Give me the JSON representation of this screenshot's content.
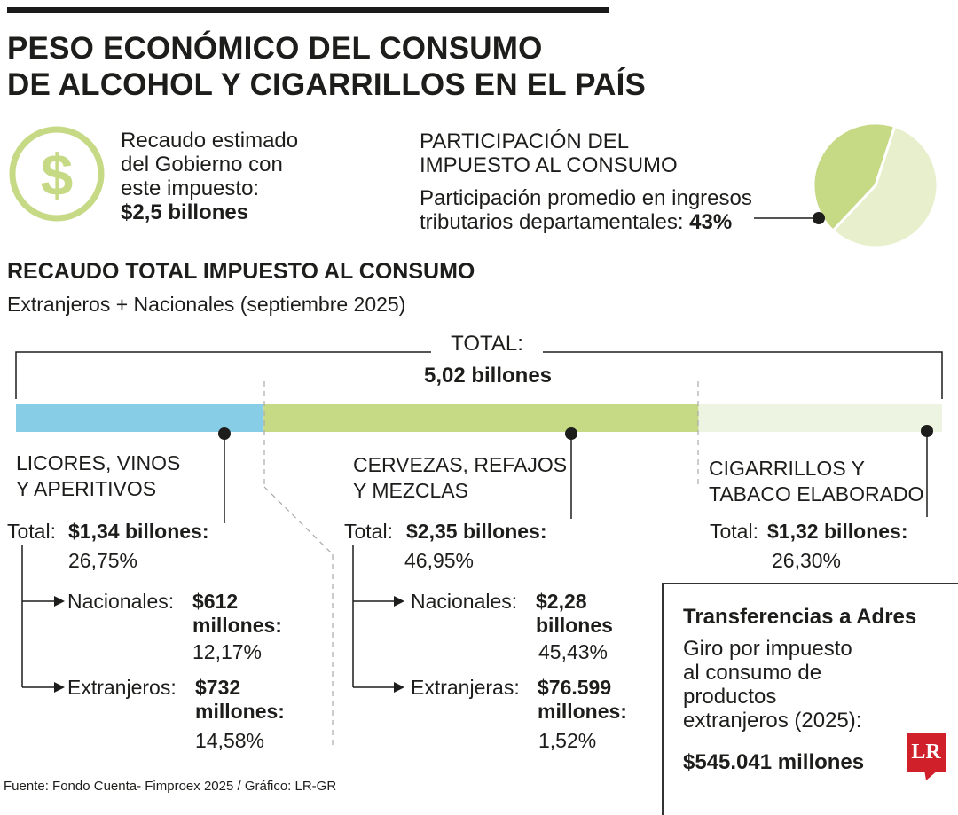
{
  "title": {
    "line1": "PESO ECONÓMICO DEL CONSUMO",
    "line2": "DE ALCOHOL Y CIGARRILLOS EN EL PAÍS"
  },
  "recaudo": {
    "line1": "Recaudo estimado",
    "line2": "del Gobierno con",
    "line3": "este impuesto:",
    "value": "$2,5 billones",
    "icon": "dollar-icon"
  },
  "participacion": {
    "title_line1": "PARTICIPACIÓN DEL",
    "title_line2": "IMPUESTO AL CONSUMO",
    "desc_line1": "Participación promedio en ingresos",
    "desc_line2": "tributarios departamentales:",
    "value": "43%"
  },
  "section": {
    "title": "RECAUDO TOTAL IMPUESTO AL CONSUMO",
    "subtitle": "Extranjeros + Nacionales (septiembre 2025)"
  },
  "total": {
    "label": "TOTAL:",
    "value": "5,02 billones"
  },
  "segments": [
    {
      "name_line1": "LICORES, VINOS",
      "name_line2": "Y APERITIVOS",
      "total_label": "Total:",
      "total_value": "$1,34 billones:",
      "total_pct": "26,75%",
      "sub1_label": "Nacionales:",
      "sub1_value_line1": "$612",
      "sub1_value_line2": "millones:",
      "sub1_pct": "12,17%",
      "sub2_label": "Extranjeros:",
      "sub2_value_line1": "$732",
      "sub2_value_line2": "millones:",
      "sub2_pct": "14,58%"
    },
    {
      "name_line1": "CERVEZAS, REFAJOS",
      "name_line2": "Y MEZCLAS",
      "total_label": "Total:",
      "total_value": "$2,35 billones:",
      "total_pct": "46,95%",
      "sub1_label": "Nacionales:",
      "sub1_value_line1": "$2,28",
      "sub1_value_line2": "billones",
      "sub1_pct": "45,43%",
      "sub2_label": "Extranjeras:",
      "sub2_value_line1": "$76.599",
      "sub2_value_line2": "millones:",
      "sub2_pct": "1,52%"
    },
    {
      "name_line1": "CIGARRILLOS Y",
      "name_line2": "TABACO ELABORADO",
      "total_label": "Total:",
      "total_value": "$1,32 billones:",
      "total_pct": "26,30%"
    }
  ],
  "adres": {
    "title": "Transferencias a Adres",
    "desc_line1": "Giro por impuesto",
    "desc_line2": "al consumo de",
    "desc_line3": "productos",
    "desc_line4": "extranjeros (2025):",
    "value": "$545.041 millones"
  },
  "footer": "Fuente:  Fondo Cuenta- Fimproex 2025 / Gráfico: LR-GR",
  "logo": "LR",
  "colors": {
    "licores": "#87cde6",
    "cervezas": "#c6d985",
    "cigarrillos": "#eef4e2",
    "pie_main": "#c6d985",
    "pie_rest": "#e8efcc",
    "icon": "#c6d985"
  },
  "chart_data": [
    {
      "type": "bar",
      "title": "RECAUDO TOTAL IMPUESTO AL CONSUMO",
      "subtitle": "Extranjeros + Nacionales (septiembre 2025)",
      "orientation": "horizontal-stacked",
      "unit": "%",
      "categories": [
        "LICORES, VINOS Y APERITIVOS",
        "CERVEZAS, REFAJOS Y MEZCLAS",
        "CIGARRILLOS Y TABACO ELABORADO"
      ],
      "values": [
        26.75,
        46.95,
        26.3
      ],
      "totals": [
        "$1,34 billones",
        "$2,35 billones",
        "$1,32 billones"
      ],
      "total": "5,02 billones"
    },
    {
      "type": "pie",
      "title": "PARTICIPACIÓN DEL IMPUESTO AL CONSUMO",
      "values": [
        43,
        57
      ],
      "labels": [
        "43%",
        ""
      ]
    }
  ]
}
